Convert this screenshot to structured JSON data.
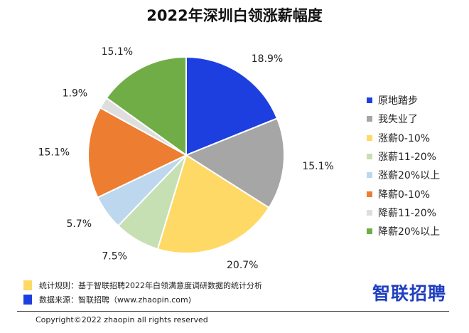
{
  "chart_data": {
    "type": "pie",
    "title": "2022年深圳白领涨薪幅度",
    "legend_position": "right",
    "slices": [
      {
        "name": "原地踏步",
        "value": 18.9,
        "label": "18.9%",
        "color": "#1d3fe0"
      },
      {
        "name": "我失业了",
        "value": 15.1,
        "label": "15.1%",
        "color": "#a6a6a6"
      },
      {
        "name": "涨薪0-10%",
        "value": 20.7,
        "label": "20.7%",
        "color": "#ffd966"
      },
      {
        "name": "涨薪11-20%",
        "value": 7.5,
        "label": "7.5%",
        "color": "#c6e0b4"
      },
      {
        "name": "涨薪20%以上",
        "value": 5.7,
        "label": "5.7%",
        "color": "#bdd7ee"
      },
      {
        "name": "降薪0-10%",
        "value": 15.1,
        "label": "15.1%",
        "color": "#ed7d31"
      },
      {
        "name": "降薪11-20%",
        "value": 1.9,
        "label": "1.9%",
        "color": "#dedede"
      },
      {
        "name": "降薪20%以上",
        "value": 15.1,
        "label": "15.1%",
        "color": "#70ad47"
      }
    ]
  },
  "footer": {
    "rule_note": "统计规则：基于智联招聘2022年白领满意度调研数据的统计分析",
    "rule_color": "#ffd966",
    "source_note": "数据来源：智联招聘（www.zhaopin.com)",
    "source_color": "#1d3fe0",
    "logo": "智联招聘",
    "copyright": "Copyright©2022 zhaopin all rights reserved"
  }
}
